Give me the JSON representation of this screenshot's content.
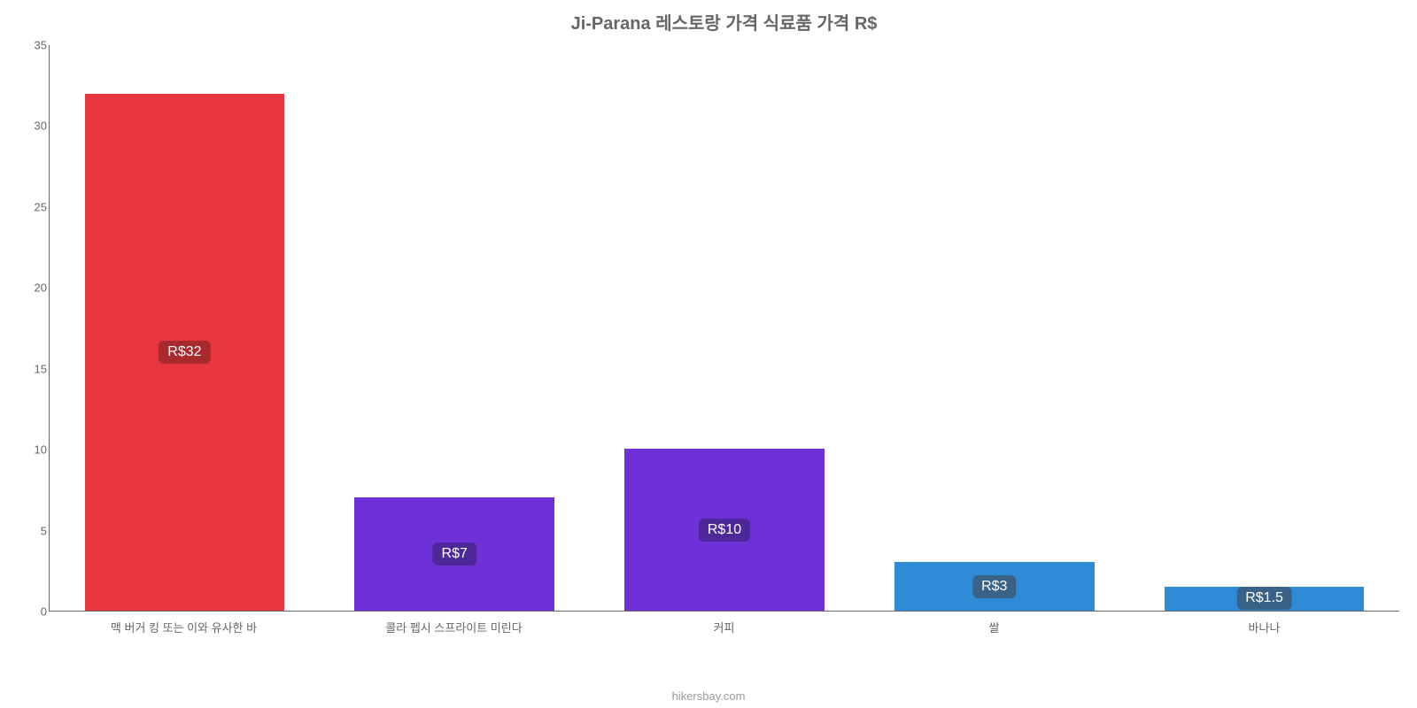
{
  "chart": {
    "type": "bar",
    "title": "Ji-Parana 레스토랑 가격 식료품 가격 R$",
    "title_fontsize": 20,
    "title_color": "#666666",
    "axis_color": "#666666",
    "tick_color": "#666666",
    "label_fontsize": 13,
    "tick_fontsize": 13,
    "value_label_fontsize": 16,
    "background_color": "#ffffff",
    "y": {
      "min": 0,
      "max": 35,
      "step": 5,
      "ticks": [
        0,
        5,
        10,
        15,
        20,
        25,
        30,
        35
      ]
    },
    "bar_width_pct": 74,
    "value_label_radius": 6,
    "bars": [
      {
        "category": "맥 버거 킹 또는 이와 유사한 바",
        "value": 32,
        "display": "R$32",
        "color": "#e7363d",
        "label_bg": "#a82a2d"
      },
      {
        "category": "콜라 펩시 스프라이트 미린다",
        "value": 7,
        "display": "R$7",
        "color": "#7030d8",
        "label_bg": "#4d289b"
      },
      {
        "category": "커피",
        "value": 10,
        "display": "R$10",
        "color": "#7030d8",
        "label_bg": "#4d289b"
      },
      {
        "category": "쌀",
        "value": 3,
        "display": "R$3",
        "color": "#2d8bd8",
        "label_bg": "#3a6186"
      },
      {
        "category": "바나나",
        "value": 1.5,
        "display": "R$1.5",
        "color": "#2d8bd8",
        "label_bg": "#3a6186"
      }
    ],
    "source": "hikersbay.com",
    "source_color": "#999999",
    "source_fontsize": 13
  }
}
